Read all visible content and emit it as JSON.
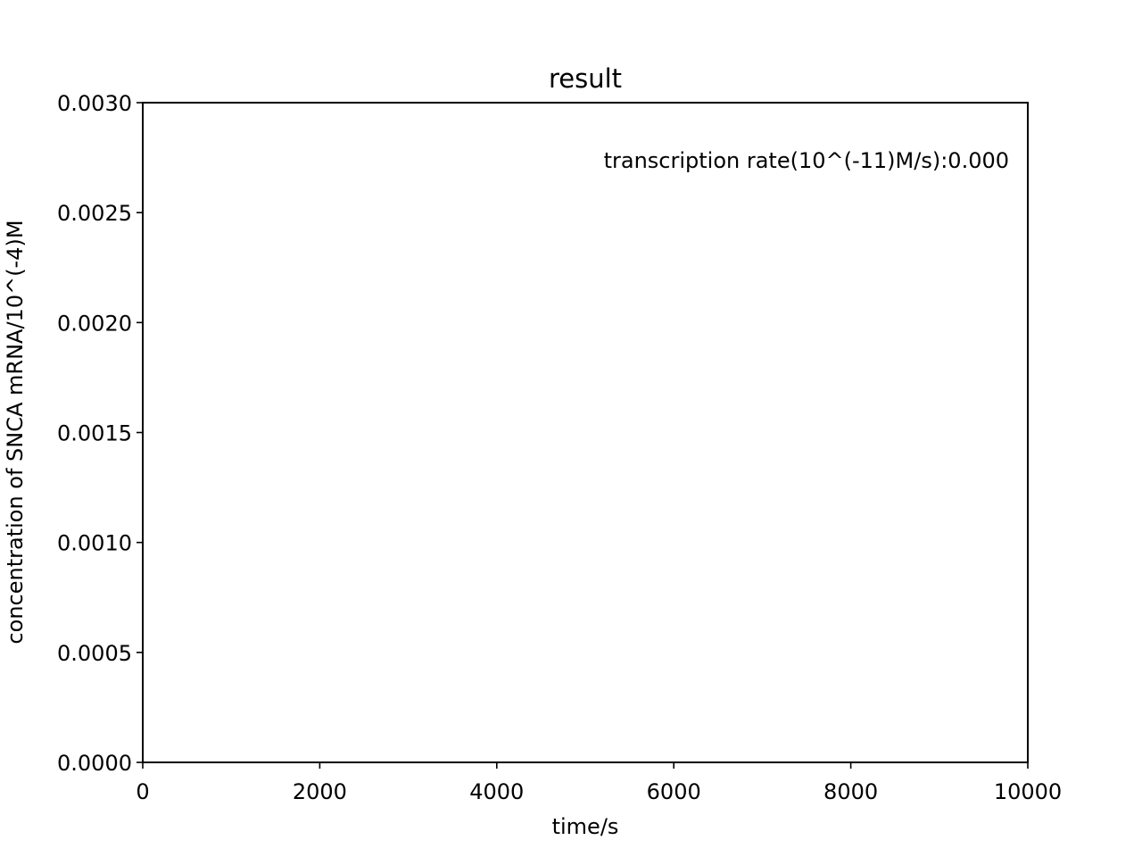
{
  "chart_data": {
    "type": "line",
    "title": "result",
    "xlabel": "time/s",
    "ylabel": "concentration of SNCA mRNA/10^(-4)M",
    "xlim": [
      0,
      10000
    ],
    "ylim": [
      0,
      0.003
    ],
    "x_ticks": [
      "0",
      "2000",
      "4000",
      "6000",
      "8000",
      "10000"
    ],
    "y_ticks": [
      "0.0000",
      "0.0005",
      "0.0010",
      "0.0015",
      "0.0020",
      "0.0025",
      "0.0030"
    ],
    "grid": false,
    "annotation": "transcription rate(10^(-11)M/s):0.000",
    "series": [
      {
        "color": "#006400",
        "x": [
          0,
          10000
        ],
        "y": [
          0,
          0
        ]
      }
    ]
  }
}
